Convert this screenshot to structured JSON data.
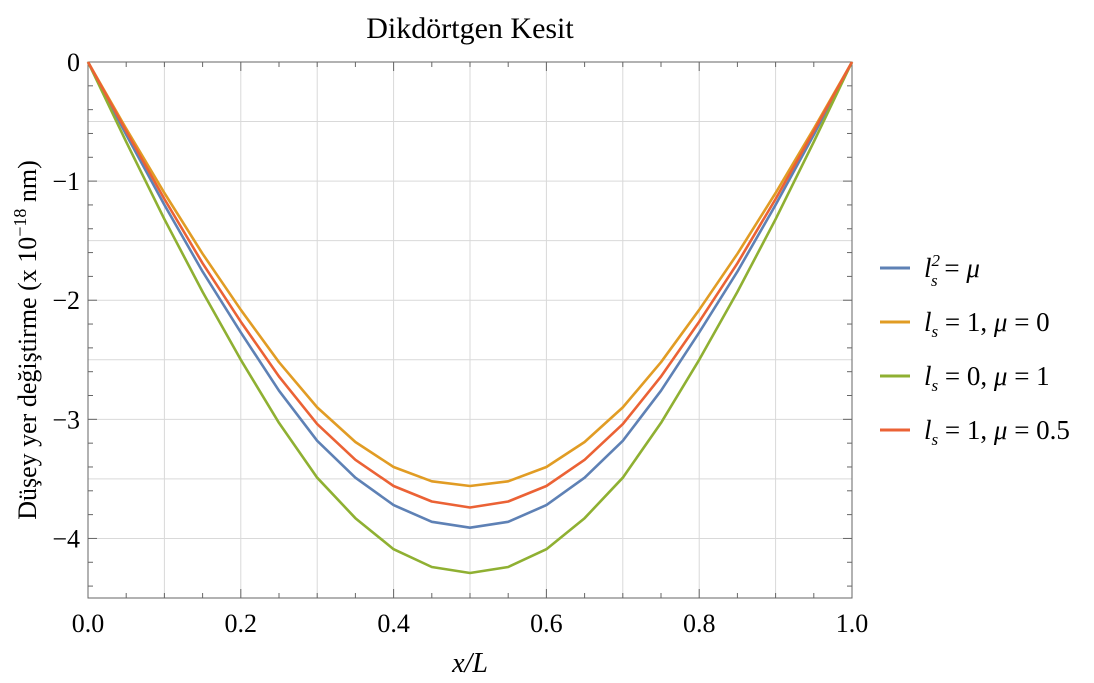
{
  "chart_data": {
    "type": "line",
    "title": "Dikdörtgen Kesit",
    "xlabel": "x/L",
    "ylabel": "Düşey yer değiştirme (x 10",
    "ylabel_exp": "−18",
    "ylabel_unit": " nm)",
    "xlim": [
      0,
      1
    ],
    "ylim": [
      -4.5,
      0
    ],
    "grid": true,
    "legend_position": "right",
    "x_ticks": [
      0,
      0.2,
      0.4,
      0.6,
      0.8,
      1
    ],
    "x_tick_labels": [
      "0.0",
      "0.2",
      "0.4",
      "0.6",
      "0.8",
      "1.0"
    ],
    "y_ticks": [
      0,
      -1,
      -2,
      -3,
      -4
    ],
    "y_tick_labels": [
      "0",
      "−1",
      "−2",
      "−3",
      "−4"
    ],
    "x": [
      0,
      0.05,
      0.1,
      0.15,
      0.2,
      0.25,
      0.3,
      0.35,
      0.4,
      0.45,
      0.5,
      0.55,
      0.6,
      0.65,
      0.7,
      0.75,
      0.8,
      0.85,
      0.9,
      0.95,
      1
    ],
    "series": [
      {
        "name": "l_s^2 = μ",
        "color": "#5E81B5",
        "values": [
          0,
          -0.61,
          -1.2,
          -1.76,
          -2.27,
          -2.76,
          -3.18,
          -3.49,
          -3.72,
          -3.86,
          -3.91,
          -3.86,
          -3.72,
          -3.49,
          -3.18,
          -2.76,
          -2.27,
          -1.76,
          -1.2,
          -0.61,
          0
        ]
      },
      {
        "name": "l_s = 1, μ = 0",
        "color": "#E19C24",
        "values": [
          0,
          -0.56,
          -1.1,
          -1.61,
          -2.08,
          -2.52,
          -2.9,
          -3.19,
          -3.4,
          -3.52,
          -3.56,
          -3.52,
          -3.4,
          -3.19,
          -2.9,
          -2.52,
          -2.08,
          -1.61,
          -1.1,
          -0.56,
          0
        ]
      },
      {
        "name": "l_s = 0, μ = 1",
        "color": "#8FB032",
        "values": [
          0,
          -0.67,
          -1.32,
          -1.93,
          -2.5,
          -3.03,
          -3.49,
          -3.83,
          -4.09,
          -4.24,
          -4.29,
          -4.24,
          -4.09,
          -3.83,
          -3.49,
          -3.03,
          -2.5,
          -1.93,
          -1.32,
          -0.67,
          0
        ]
      },
      {
        "name": "l_s = 1, μ = 0.5",
        "color": "#EB6235",
        "values": [
          0,
          -0.58,
          -1.15,
          -1.69,
          -2.18,
          -2.64,
          -3.04,
          -3.34,
          -3.56,
          -3.69,
          -3.74,
          -3.69,
          -3.56,
          -3.34,
          -3.04,
          -2.64,
          -2.18,
          -1.69,
          -1.15,
          -0.58,
          0
        ]
      }
    ]
  }
}
